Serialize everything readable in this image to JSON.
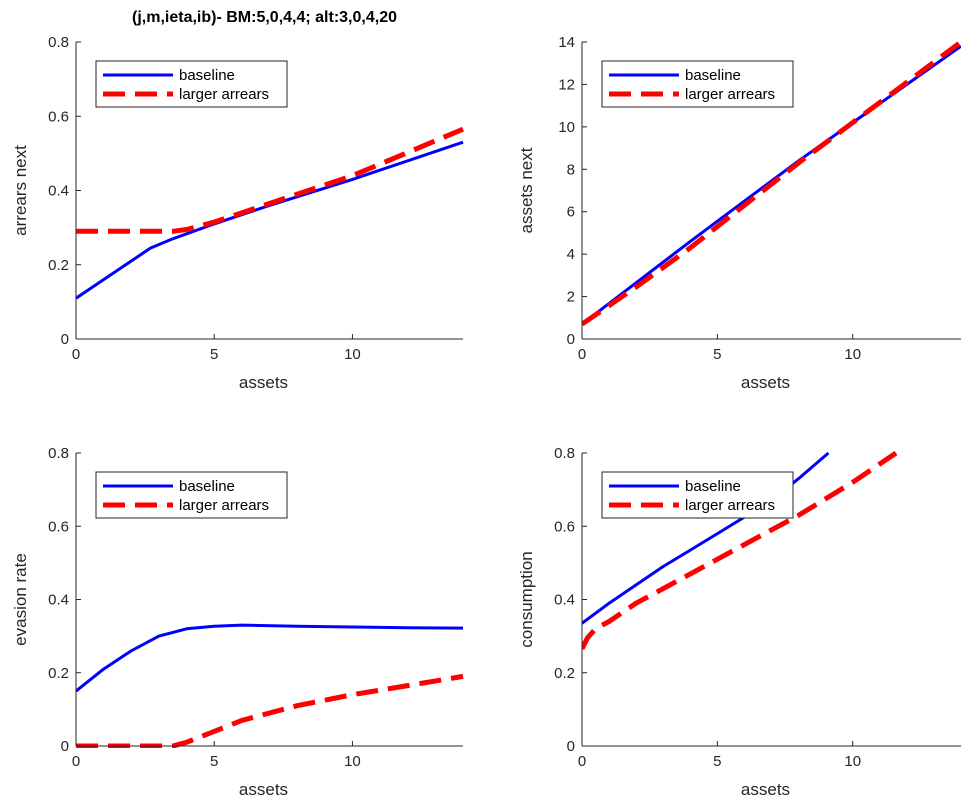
{
  "figure_title": "(j,m,ieta,ib)- BM:5,0,4,4; alt:3,0,4,20",
  "colors": {
    "baseline": "#0000ff",
    "larger_arrears": "#ff0000",
    "axis": "#262626"
  },
  "chart_data": [
    {
      "type": "line",
      "title": "(j,m,ieta,ib)- BM:5,0,4,4; alt:3,0,4,20",
      "xlabel": "assets",
      "ylabel": "arrears next",
      "xlim": [
        0,
        14
      ],
      "ylim": [
        0,
        0.8
      ],
      "xticks": [
        0,
        5,
        10
      ],
      "yticks": [
        0,
        0.2,
        0.4,
        0.6,
        0.8
      ],
      "yticklabels": [
        "0",
        "0.2",
        "0.4",
        "0.6",
        "0.8"
      ],
      "legend": {
        "placement": "top-left",
        "entries": [
          "baseline",
          "larger arrears"
        ]
      },
      "series": [
        {
          "name": "baseline",
          "style": "solid",
          "x": [
            0,
            1,
            2,
            2.7,
            3.5,
            5,
            7,
            10,
            14
          ],
          "y": [
            0.11,
            0.16,
            0.21,
            0.245,
            0.27,
            0.31,
            0.36,
            0.43,
            0.53
          ]
        },
        {
          "name": "larger arrears",
          "style": "dashed",
          "x": [
            0,
            3.5,
            4,
            5,
            7,
            10,
            14
          ],
          "y": [
            0.29,
            0.29,
            0.295,
            0.315,
            0.365,
            0.44,
            0.565
          ]
        }
      ]
    },
    {
      "type": "line",
      "xlabel": "assets",
      "ylabel": "assets next",
      "xlim": [
        0,
        14
      ],
      "ylim": [
        0,
        14
      ],
      "xticks": [
        0,
        5,
        10
      ],
      "yticks": [
        0,
        2,
        4,
        6,
        8,
        10,
        12,
        14
      ],
      "yticklabels": [
        "0",
        "2",
        "4",
        "6",
        "8",
        "10",
        "12",
        "14"
      ],
      "legend": {
        "placement": "top-left",
        "entries": [
          "baseline",
          "larger arrears"
        ]
      },
      "series": [
        {
          "name": "baseline",
          "style": "solid",
          "x": [
            0,
            2,
            4,
            6,
            8,
            10,
            12,
            14
          ],
          "y": [
            0.7,
            2.65,
            4.6,
            6.5,
            8.4,
            10.2,
            12.0,
            13.8
          ]
        },
        {
          "name": "larger arrears",
          "style": "dashed",
          "x": [
            0,
            2,
            4,
            6,
            8,
            10,
            12,
            14
          ],
          "y": [
            0.7,
            2.45,
            4.3,
            6.3,
            8.3,
            10.2,
            12.1,
            14.0
          ]
        }
      ]
    },
    {
      "type": "line",
      "xlabel": "assets",
      "ylabel": "evasion rate",
      "xlim": [
        0,
        14
      ],
      "ylim": [
        0,
        0.8
      ],
      "xticks": [
        0,
        5,
        10
      ],
      "yticks": [
        0,
        0.2,
        0.4,
        0.6,
        0.8
      ],
      "yticklabels": [
        "0",
        "0.2",
        "0.4",
        "0.6",
        "0.8"
      ],
      "legend": {
        "placement": "top-left",
        "entries": [
          "baseline",
          "larger arrears"
        ]
      },
      "series": [
        {
          "name": "baseline",
          "style": "solid",
          "x": [
            0,
            1,
            2,
            3,
            4,
            5,
            6,
            8,
            10,
            12,
            14
          ],
          "y": [
            0.15,
            0.21,
            0.26,
            0.3,
            0.32,
            0.327,
            0.33,
            0.327,
            0.325,
            0.323,
            0.322
          ]
        },
        {
          "name": "larger arrears",
          "style": "dashed",
          "x": [
            0,
            3.5,
            4,
            5,
            6,
            8,
            10,
            12,
            14
          ],
          "y": [
            0,
            0,
            0.01,
            0.04,
            0.07,
            0.11,
            0.14,
            0.165,
            0.19
          ]
        }
      ]
    },
    {
      "type": "line",
      "xlabel": "assets",
      "ylabel": "consumption",
      "xlim": [
        0,
        14
      ],
      "ylim": [
        0,
        0.8
      ],
      "xticks": [
        0,
        5,
        10
      ],
      "yticks": [
        0,
        0.2,
        0.4,
        0.6,
        0.8
      ],
      "yticklabels": [
        "0",
        "0.2",
        "0.4",
        "0.6",
        "0.8"
      ],
      "legend": {
        "placement": "top-left",
        "entries": [
          "baseline",
          "larger arrears"
        ]
      },
      "series": [
        {
          "name": "baseline",
          "style": "solid",
          "x": [
            0,
            1,
            2,
            3,
            4,
            5,
            6,
            7,
            8,
            9.1
          ],
          "y": [
            0.335,
            0.39,
            0.44,
            0.49,
            0.535,
            0.58,
            0.625,
            0.67,
            0.73,
            0.8
          ]
        },
        {
          "name": "larger arrears",
          "style": "dashed",
          "x": [
            0,
            0.2,
            0.5,
            1,
            2,
            4,
            6,
            8,
            10,
            11.6
          ],
          "y": [
            0.265,
            0.295,
            0.32,
            0.34,
            0.39,
            0.47,
            0.55,
            0.63,
            0.72,
            0.8
          ]
        }
      ]
    }
  ]
}
